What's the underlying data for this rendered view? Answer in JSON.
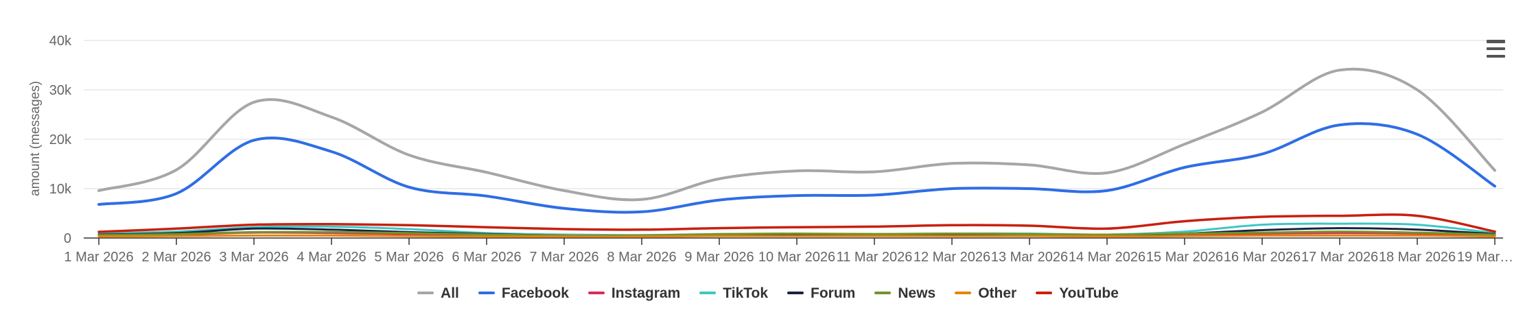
{
  "chart_data": {
    "type": "line",
    "title": "",
    "xlabel": "",
    "ylabel": "amount (messages)",
    "ylim": [
      0,
      40000
    ],
    "grid": "horizontal",
    "legend_position": "bottom-center",
    "y_ticks": [
      {
        "value": 0,
        "label": "0"
      },
      {
        "value": 10000,
        "label": "10k"
      },
      {
        "value": 20000,
        "label": "20k"
      },
      {
        "value": 30000,
        "label": "30k"
      },
      {
        "value": 40000,
        "label": "40k"
      }
    ],
    "categories": [
      "1 Mar 2026",
      "2 Mar 2026",
      "3 Mar 2026",
      "4 Mar 2026",
      "5 Mar 2026",
      "6 Mar 2026",
      "7 Mar 2026",
      "8 Mar 2026",
      "9 Mar 2026",
      "10 Mar 2026",
      "11 Mar 2026",
      "12 Mar 2026",
      "13 Mar 2026",
      "14 Mar 2026",
      "15 Mar 2026",
      "16 Mar 2026",
      "17 Mar 2026",
      "18 Mar 2026",
      "19 Mar…"
    ],
    "series": [
      {
        "name": "All",
        "color": "#a6a6a6",
        "width": 4,
        "values": [
          9600,
          13800,
          27500,
          24500,
          16800,
          13300,
          9600,
          7800,
          12000,
          13600,
          13400,
          15100,
          14800,
          13200,
          19000,
          25500,
          34000,
          30000,
          13700
        ]
      },
      {
        "name": "Facebook",
        "color": "#2e6de5",
        "width": 4,
        "values": [
          6800,
          9000,
          19800,
          17500,
          10300,
          8500,
          6000,
          5300,
          7700,
          8600,
          8700,
          10000,
          10000,
          9600,
          14300,
          17000,
          22900,
          21000,
          10500
        ]
      },
      {
        "name": "Instagram",
        "color": "#d62d58",
        "width": 3,
        "values": [
          500,
          700,
          1100,
          1000,
          800,
          600,
          400,
          400,
          500,
          500,
          500,
          600,
          600,
          500,
          700,
          900,
          1000,
          900,
          500
        ]
      },
      {
        "name": "TikTok",
        "color": "#3ec6c4",
        "width": 3,
        "values": [
          900,
          1300,
          2200,
          2300,
          1800,
          1000,
          700,
          600,
          800,
          800,
          800,
          900,
          900,
          700,
          1300,
          2700,
          2900,
          2700,
          1000
        ]
      },
      {
        "name": "Forum",
        "color": "#1b2240",
        "width": 3,
        "values": [
          700,
          1000,
          1900,
          1700,
          1200,
          800,
          500,
          500,
          600,
          700,
          700,
          800,
          700,
          600,
          900,
          1600,
          2000,
          1700,
          800
        ]
      },
      {
        "name": "News",
        "color": "#739428",
        "width": 3,
        "values": [
          600,
          800,
          1200,
          1200,
          1000,
          700,
          500,
          500,
          800,
          900,
          800,
          900,
          800,
          700,
          900,
          1100,
          1300,
          1100,
          700
        ]
      },
      {
        "name": "Other",
        "color": "#e8830c",
        "width": 3,
        "values": [
          300,
          400,
          500,
          500,
          400,
          300,
          300,
          300,
          400,
          400,
          400,
          400,
          400,
          300,
          400,
          500,
          500,
          500,
          300
        ]
      },
      {
        "name": "YouTube",
        "color": "#c8200f",
        "width": 3.5,
        "values": [
          1250,
          1900,
          2700,
          2800,
          2600,
          2200,
          1800,
          1700,
          2000,
          2200,
          2300,
          2600,
          2500,
          1900,
          3400,
          4300,
          4500,
          4500,
          1300
        ]
      }
    ],
    "icons": {
      "context_menu": "hamburger-menu-icon"
    },
    "colors": {
      "gridline": "#e7e7e7",
      "axis": "#333333",
      "axis_label": "#666666",
      "legend_text": "#333333"
    }
  }
}
